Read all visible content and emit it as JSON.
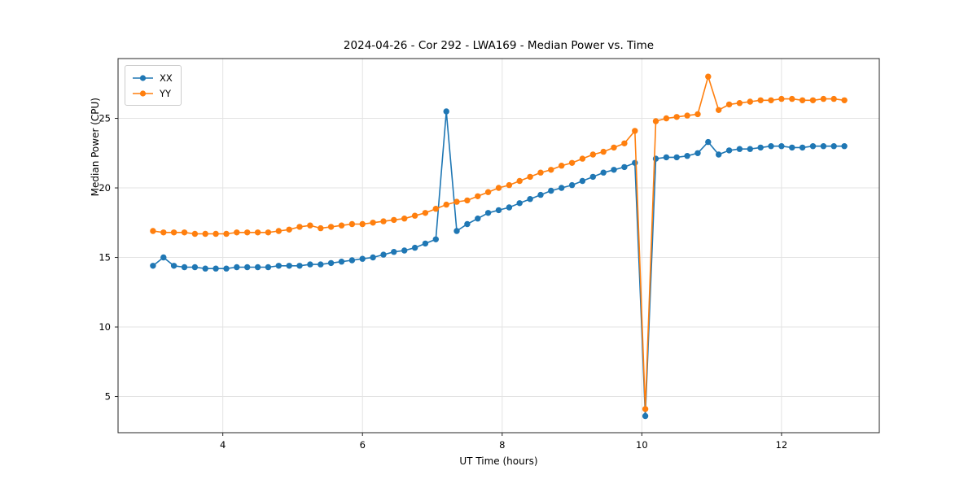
{
  "chart_data": {
    "type": "line",
    "title": "2024-04-26 - Cor 292 - LWA169 - Median Power vs. Time",
    "xlabel": "UT Time (hours)",
    "ylabel": "Median Power (CPU)",
    "xlim": [
      2.5,
      13.4
    ],
    "ylim": [
      2.4,
      29.3
    ],
    "xticks": [
      4,
      6,
      8,
      10,
      12
    ],
    "yticks": [
      5,
      10,
      15,
      20,
      25
    ],
    "grid": true,
    "legend_position": "upper left",
    "x": [
      3.0,
      3.15,
      3.3,
      3.45,
      3.6,
      3.75,
      3.9,
      4.05,
      4.2,
      4.35,
      4.5,
      4.65,
      4.8,
      4.95,
      5.1,
      5.25,
      5.4,
      5.55,
      5.7,
      5.85,
      6.0,
      6.15,
      6.3,
      6.45,
      6.6,
      6.75,
      6.9,
      7.05,
      7.2,
      7.35,
      7.5,
      7.65,
      7.8,
      7.95,
      8.1,
      8.25,
      8.4,
      8.55,
      8.7,
      8.85,
      9.0,
      9.15,
      9.3,
      9.45,
      9.6,
      9.75,
      9.9,
      10.05,
      10.2,
      10.35,
      10.5,
      10.65,
      10.8,
      10.95,
      11.1,
      11.25,
      11.4,
      11.55,
      11.7,
      11.85,
      12.0,
      12.15,
      12.3,
      12.45,
      12.6,
      12.75,
      12.9
    ],
    "series": [
      {
        "name": "XX",
        "color": "#1f77b4",
        "values": [
          14.4,
          15.0,
          14.4,
          14.3,
          14.3,
          14.2,
          14.2,
          14.2,
          14.3,
          14.3,
          14.3,
          14.3,
          14.4,
          14.4,
          14.4,
          14.5,
          14.5,
          14.6,
          14.7,
          14.8,
          14.9,
          15.0,
          15.2,
          15.4,
          15.5,
          15.7,
          16.0,
          16.3,
          25.5,
          16.9,
          17.4,
          17.8,
          18.2,
          18.4,
          18.6,
          18.9,
          19.2,
          19.5,
          19.8,
          20.0,
          20.2,
          20.5,
          20.8,
          21.1,
          21.3,
          21.5,
          21.8,
          3.6,
          22.1,
          22.2,
          22.2,
          22.3,
          22.5,
          23.3,
          22.4,
          22.7,
          22.8,
          22.8,
          22.9,
          23.0,
          23.0,
          22.9,
          22.9,
          23.0,
          23.0,
          23.0,
          23.0
        ]
      },
      {
        "name": "YY",
        "color": "#ff7f0e",
        "values": [
          16.9,
          16.8,
          16.8,
          16.8,
          16.7,
          16.7,
          16.7,
          16.7,
          16.8,
          16.8,
          16.8,
          16.8,
          16.9,
          17.0,
          17.2,
          17.3,
          17.1,
          17.2,
          17.3,
          17.4,
          17.4,
          17.5,
          17.6,
          17.7,
          17.8,
          18.0,
          18.2,
          18.5,
          18.8,
          19.0,
          19.1,
          19.4,
          19.7,
          20.0,
          20.2,
          20.5,
          20.8,
          21.1,
          21.3,
          21.6,
          21.8,
          22.1,
          22.4,
          22.6,
          22.9,
          23.2,
          24.1,
          4.1,
          24.8,
          25.0,
          25.1,
          25.2,
          25.3,
          28.0,
          25.6,
          26.0,
          26.1,
          26.2,
          26.3,
          26.3,
          26.4,
          26.4,
          26.3,
          26.3,
          26.4,
          26.4,
          26.3
        ]
      }
    ]
  }
}
